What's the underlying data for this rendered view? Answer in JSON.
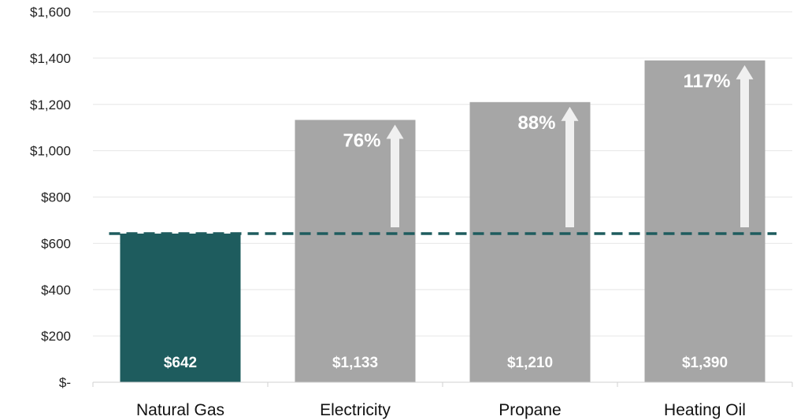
{
  "chart_data": {
    "type": "bar",
    "categories": [
      "Natural Gas",
      "Electricity",
      "Propane",
      "Heating Oil"
    ],
    "values": [
      642,
      1133,
      1210,
      1390
    ],
    "value_labels": [
      "$642",
      "$1,133",
      "$1,210",
      "$1,390"
    ],
    "increase_labels": [
      "",
      "76%",
      "88%",
      "117%"
    ],
    "y_ticks": [
      0,
      200,
      400,
      600,
      800,
      1000,
      1200,
      1400,
      1600
    ],
    "y_tick_labels": [
      "$-",
      "$200",
      "$400",
      "$600",
      "$800",
      "$1,000",
      "$1,200",
      "$1,400",
      "$1,600"
    ],
    "ylim": [
      0,
      1600
    ],
    "reference_line": {
      "value": 642,
      "style": "dashed"
    },
    "grid": true,
    "colors": {
      "highlight_bar": "#1e5c5e",
      "bar": "#a6a6a6",
      "reference_line": "#1e5c5e",
      "arrow": "#f0f0f0",
      "data_label": "#ffffff"
    }
  }
}
